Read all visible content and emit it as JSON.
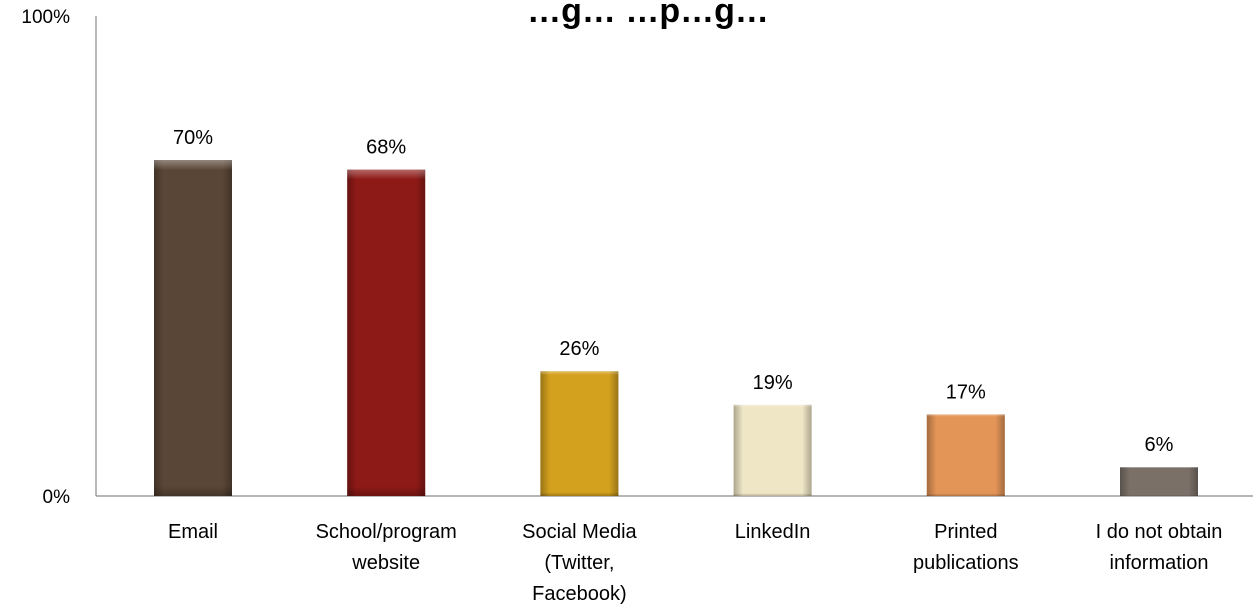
{
  "chart_data": {
    "type": "bar",
    "title": "…g… …p…g…",
    "categories": [
      [
        "Email"
      ],
      [
        "School/program",
        "website"
      ],
      [
        "Social Media",
        "(Twitter,",
        "Facebook)"
      ],
      [
        "LinkedIn"
      ],
      [
        "Printed",
        "publications"
      ],
      [
        "I do not obtain",
        "information"
      ]
    ],
    "values": [
      70,
      68,
      26,
      19,
      17,
      6
    ],
    "value_labels": [
      "70%",
      "68%",
      "26%",
      "19%",
      "17%",
      "6%"
    ],
    "colors": [
      "#5a4636",
      "#8e1a17",
      "#d4a11e",
      "#efe6c6",
      "#e39457",
      "#7a7068"
    ],
    "ylim": [
      0,
      100
    ],
    "y_tick_labels": [
      "0%",
      "100%"
    ],
    "xlabel": "",
    "ylabel": "",
    "grid": false,
    "legend": "none"
  }
}
